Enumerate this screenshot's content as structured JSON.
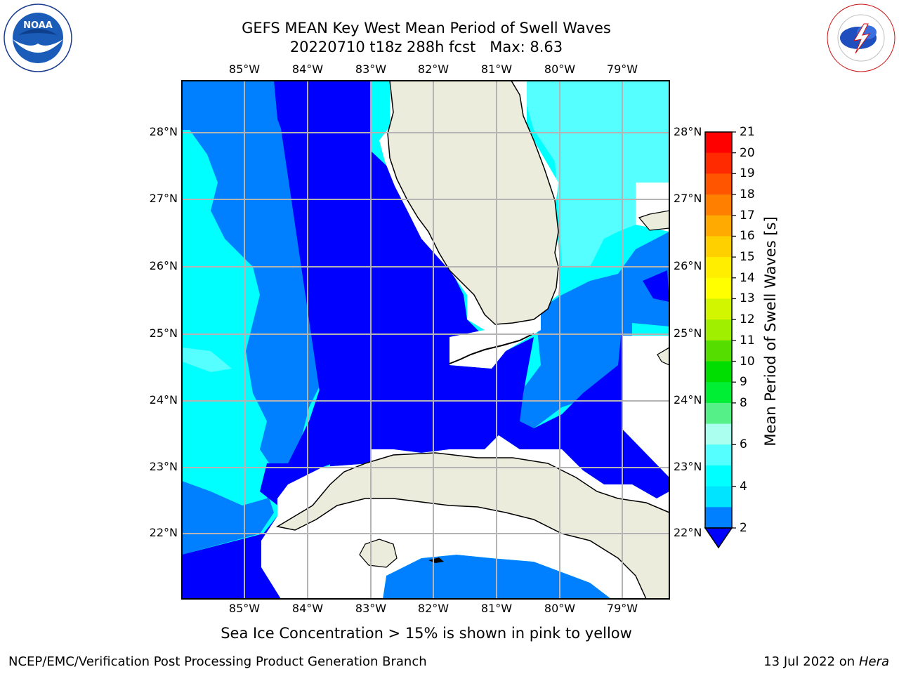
{
  "header": {
    "title_line1": "GEFS MEAN Key West Mean Period of Swell Waves",
    "title_line2": "20220710 t18z 288h fcst   Max: 8.63"
  },
  "logos": {
    "noaa_text": "NOAA",
    "noaa_ring_text": "NATIONAL OCEANIC AND ATMOSPHERIC ADMINISTRATION · U.S. DEPARTMENT OF COMMERCE",
    "nws_ring_text": "NATIONAL WEATHER SERVICE"
  },
  "map": {
    "lon_labels": [
      "85°W",
      "84°W",
      "83°W",
      "82°W",
      "81°W",
      "80°W",
      "79°W"
    ],
    "lat_labels": [
      "28°N",
      "27°N",
      "26°N",
      "25°N",
      "24°N",
      "23°N",
      "22°N"
    ],
    "grid": true,
    "colors": {
      "land": "#ececdc",
      "missing": "#ffffff",
      "gridline": "#b4b4b4"
    }
  },
  "colorbar": {
    "label": "Mean Period of Swell Waves [s]",
    "ticks": [
      "21",
      "20",
      "19",
      "18",
      "17",
      "16",
      "15",
      "14",
      "13",
      "12",
      "11",
      "10",
      "9",
      "8",
      "6",
      "4",
      "2"
    ],
    "bin_colors_top_to_bottom": [
      "#ff0000",
      "#ff2a00",
      "#ff5500",
      "#ff8000",
      "#ffaa00",
      "#ffd000",
      "#ffee00",
      "#ffff00",
      "#d2f500",
      "#a0ee00",
      "#55dd00",
      "#00dd00",
      "#00ee33",
      "#55f088",
      "#aaffee",
      "#55ffff",
      "#00ffff",
      "#00e4ff",
      "#0080ff"
    ],
    "under_color": "#0000ff"
  },
  "footer": {
    "note": "Sea Ice Concentration > 15% is shown in pink to yellow",
    "left": "NCEP/EMC/Verification Post Processing Product Generation Branch",
    "right_date": "13 Jul 2022 on",
    "right_host": "Hera"
  }
}
